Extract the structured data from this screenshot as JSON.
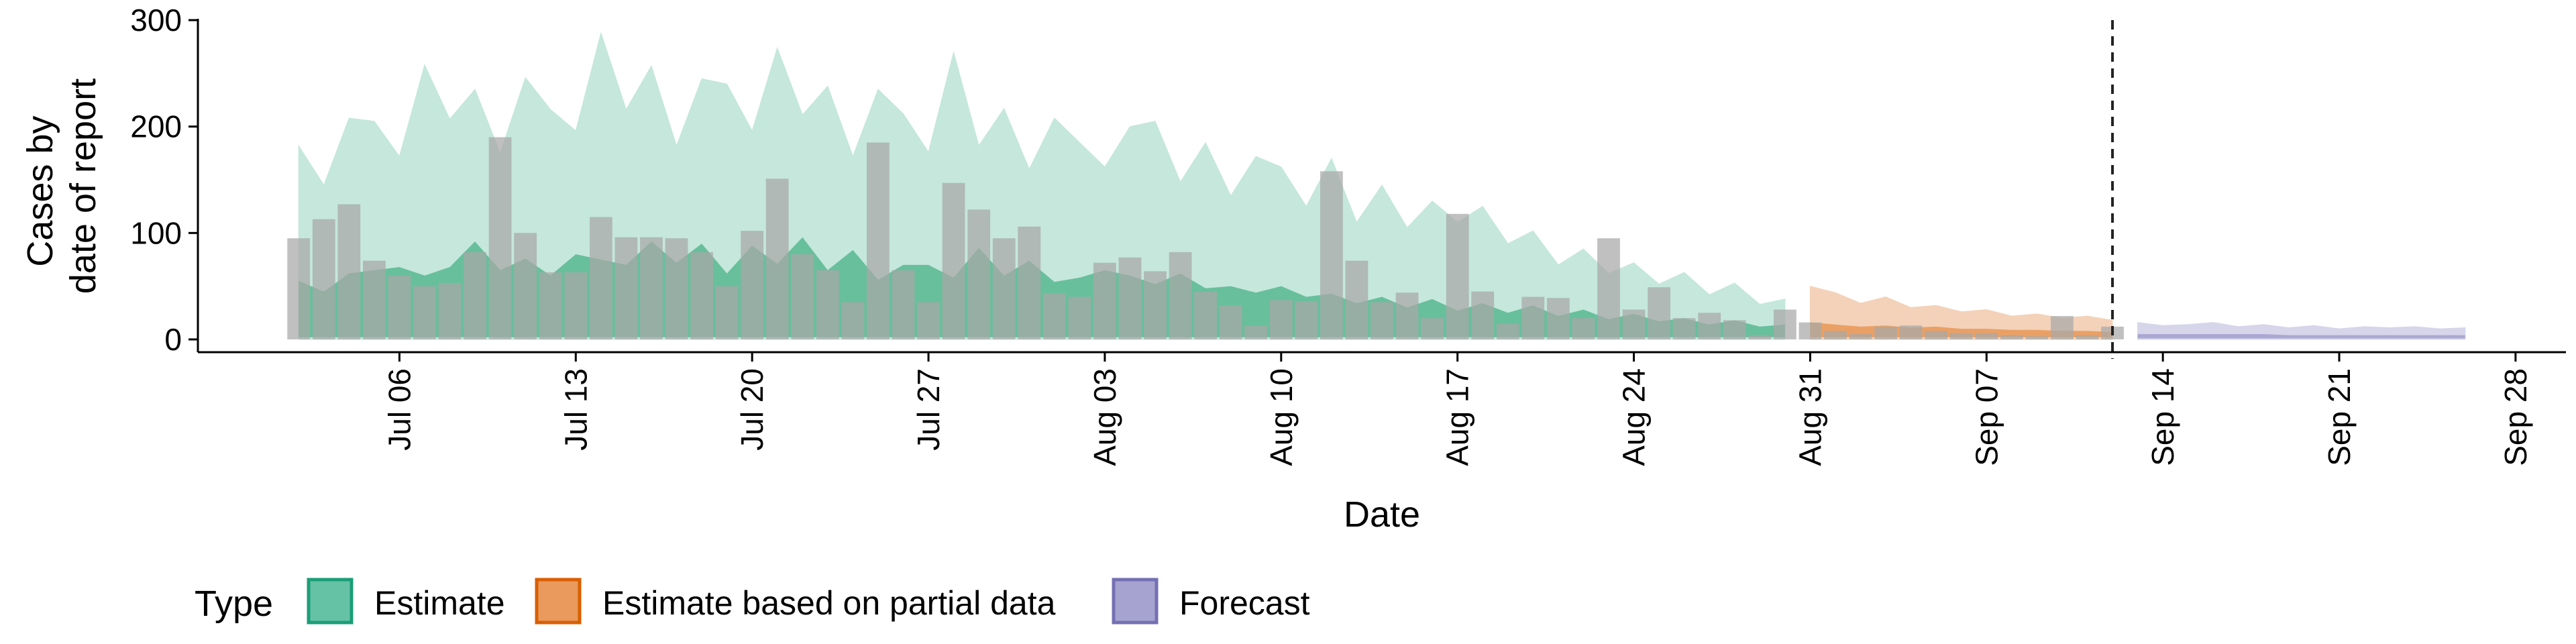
{
  "chart_data": {
    "type": "area",
    "title": "",
    "xlabel": "Date",
    "ylabel": "Cases by date of report",
    "ylabel_lines": [
      "Cases by",
      "date of report"
    ],
    "y_ticks": [
      0,
      100,
      200,
      300
    ],
    "y_tick_labels": [
      "0",
      "100",
      "200",
      "300"
    ],
    "ylim": [
      -12,
      300
    ],
    "xlim": [
      "2020-06-28",
      "2020-09-30"
    ],
    "x_ticks": [
      "2020-07-06",
      "2020-07-13",
      "2020-07-20",
      "2020-07-27",
      "2020-08-03",
      "2020-08-10",
      "2020-08-17",
      "2020-08-24",
      "2020-08-31",
      "2020-09-07",
      "2020-09-14",
      "2020-09-21",
      "2020-09-28"
    ],
    "x_tick_labels": [
      "Jul 06",
      "Jul 13",
      "Jul 20",
      "Jul 27",
      "Aug 03",
      "Aug 10",
      "Aug 17",
      "Aug 24",
      "Aug 31",
      "Sep 07",
      "Sep 14",
      "Sep 21",
      "Sep 28"
    ],
    "grid": false,
    "vline": "2020-09-12",
    "legend": {
      "position": "bottom",
      "title": "Type",
      "entries": [
        {
          "label": "Estimate",
          "fill": "#66c2a5",
          "stroke": "#1b9e77"
        },
        {
          "label": "Estimate based on partial data",
          "fill": "#e99a5c",
          "stroke": "#d95f02"
        },
        {
          "label": "Forecast",
          "fill": "#a6a3d0",
          "stroke": "#7570b3"
        }
      ]
    },
    "colors": {
      "estimate_outer": "#c5e7dc",
      "estimate_inner": "#5dba95",
      "partial_outer": "#f3d2b9",
      "partial_inner": "#e99a5c",
      "forecast_outer": "#d6d5ea",
      "forecast_inner": "#a6a3d0",
      "bars": "#a8a8a8"
    },
    "bars": {
      "x": [
        "2020-07-02",
        "2020-07-03",
        "2020-07-04",
        "2020-07-05",
        "2020-07-06",
        "2020-07-07",
        "2020-07-08",
        "2020-07-09",
        "2020-07-10",
        "2020-07-11",
        "2020-07-12",
        "2020-07-13",
        "2020-07-14",
        "2020-07-15",
        "2020-07-16",
        "2020-07-17",
        "2020-07-18",
        "2020-07-19",
        "2020-07-20",
        "2020-07-21",
        "2020-07-22",
        "2020-07-23",
        "2020-07-24",
        "2020-07-25",
        "2020-07-26",
        "2020-07-27",
        "2020-07-28",
        "2020-07-29",
        "2020-07-30",
        "2020-07-31",
        "2020-08-01",
        "2020-08-02",
        "2020-08-03",
        "2020-08-04",
        "2020-08-05",
        "2020-08-06",
        "2020-08-07",
        "2020-08-08",
        "2020-08-09",
        "2020-08-10",
        "2020-08-11",
        "2020-08-12",
        "2020-08-13",
        "2020-08-14",
        "2020-08-15",
        "2020-08-16",
        "2020-08-17",
        "2020-08-18",
        "2020-08-19",
        "2020-08-20",
        "2020-08-21",
        "2020-08-22",
        "2020-08-23",
        "2020-08-24",
        "2020-08-25",
        "2020-08-26",
        "2020-08-27",
        "2020-08-28",
        "2020-08-29",
        "2020-08-30",
        "2020-08-31",
        "2020-09-01",
        "2020-09-02",
        "2020-09-03",
        "2020-09-04",
        "2020-09-05",
        "2020-09-06",
        "2020-09-07",
        "2020-09-08",
        "2020-09-09",
        "2020-09-10",
        "2020-09-11",
        "2020-09-12"
      ],
      "values": [
        95,
        113,
        127,
        74,
        60,
        50,
        53,
        82,
        190,
        100,
        63,
        63,
        115,
        96,
        96,
        95,
        82,
        50,
        102,
        151,
        80,
        65,
        35,
        185,
        65,
        35,
        147,
        122,
        95,
        106,
        43,
        40,
        72,
        77,
        64,
        82,
        45,
        32,
        13,
        37,
        36,
        158,
        74,
        35,
        44,
        20,
        118,
        45,
        15,
        40,
        39,
        20,
        95,
        28,
        49,
        20,
        25,
        18,
        4,
        28,
        16,
        8,
        5,
        12,
        13,
        8,
        6,
        6,
        4,
        3,
        22,
        4,
        12
      ]
    },
    "series": [
      {
        "name": "Estimate",
        "x": [
          "2020-07-02",
          "2020-07-03",
          "2020-07-04",
          "2020-07-05",
          "2020-07-06",
          "2020-07-07",
          "2020-07-08",
          "2020-07-09",
          "2020-07-10",
          "2020-07-11",
          "2020-07-12",
          "2020-07-13",
          "2020-07-14",
          "2020-07-15",
          "2020-07-16",
          "2020-07-17",
          "2020-07-18",
          "2020-07-19",
          "2020-07-20",
          "2020-07-21",
          "2020-07-22",
          "2020-07-23",
          "2020-07-24",
          "2020-07-25",
          "2020-07-26",
          "2020-07-27",
          "2020-07-28",
          "2020-07-29",
          "2020-07-30",
          "2020-07-31",
          "2020-08-01",
          "2020-08-02",
          "2020-08-03",
          "2020-08-04",
          "2020-08-05",
          "2020-08-06",
          "2020-08-07",
          "2020-08-08",
          "2020-08-09",
          "2020-08-10",
          "2020-08-11",
          "2020-08-12",
          "2020-08-13",
          "2020-08-14",
          "2020-08-15",
          "2020-08-16",
          "2020-08-17",
          "2020-08-18",
          "2020-08-19",
          "2020-08-20",
          "2020-08-21",
          "2020-08-22",
          "2020-08-23",
          "2020-08-24",
          "2020-08-25",
          "2020-08-26",
          "2020-08-27",
          "2020-08-28",
          "2020-08-29",
          "2020-08-30"
        ],
        "outer_upper": [
          182,
          145,
          208,
          205,
          172,
          258,
          207,
          235,
          175,
          246,
          216,
          196,
          288,
          216,
          257,
          182,
          245,
          240,
          196,
          274,
          211,
          238,
          172,
          235,
          212,
          176,
          270,
          182,
          217,
          160,
          208,
          185,
          162,
          200,
          205,
          148,
          185,
          135,
          172,
          162,
          125,
          170,
          110,
          145,
          105,
          130,
          110,
          125,
          90,
          102,
          70,
          85,
          62,
          72,
          52,
          63,
          42,
          53,
          33,
          38
        ],
        "outer_lower": [
          0,
          0,
          0,
          0,
          0,
          0,
          0,
          0,
          0,
          0,
          0,
          0,
          0,
          0,
          0,
          0,
          0,
          0,
          0,
          0,
          0,
          0,
          0,
          0,
          0,
          0,
          0,
          0,
          0,
          0,
          0,
          0,
          0,
          0,
          0,
          0,
          0,
          0,
          0,
          0,
          0,
          0,
          0,
          0,
          0,
          0,
          0,
          0,
          0,
          0,
          0,
          0,
          0,
          0,
          0,
          0,
          0,
          0,
          0,
          0
        ],
        "inner_upper": [
          55,
          45,
          62,
          65,
          68,
          60,
          68,
          92,
          65,
          76,
          60,
          80,
          75,
          70,
          92,
          72,
          90,
          62,
          88,
          71,
          96,
          65,
          84,
          56,
          70,
          70,
          58,
          86,
          60,
          74,
          54,
          58,
          65,
          60,
          52,
          62,
          48,
          50,
          44,
          50,
          40,
          43,
          34,
          40,
          30,
          38,
          27,
          34,
          25,
          32,
          22,
          28,
          19,
          24,
          17,
          20,
          14,
          18,
          12,
          14
        ],
        "inner_lower": [
          2,
          2,
          2,
          2,
          2,
          2,
          2,
          2,
          2,
          2,
          2,
          2,
          2,
          2,
          2,
          2,
          2,
          2,
          2,
          2,
          2,
          2,
          2,
          2,
          2,
          2,
          2,
          2,
          2,
          2,
          2,
          2,
          2,
          2,
          2,
          2,
          2,
          2,
          2,
          2,
          2,
          2,
          2,
          2,
          2,
          2,
          2,
          2,
          2,
          2,
          2,
          2,
          2,
          2,
          2,
          2,
          2,
          2,
          2,
          2
        ]
      },
      {
        "name": "Estimate based on partial data",
        "x": [
          "2020-08-31",
          "2020-09-01",
          "2020-09-02",
          "2020-09-03",
          "2020-09-04",
          "2020-09-05",
          "2020-09-06",
          "2020-09-07",
          "2020-09-08",
          "2020-09-09",
          "2020-09-10",
          "2020-09-11",
          "2020-09-12"
        ],
        "outer_upper": [
          50,
          44,
          34,
          40,
          30,
          32,
          26,
          28,
          22,
          24,
          20,
          22,
          18
        ],
        "outer_lower": [
          0,
          0,
          0,
          0,
          0,
          0,
          0,
          0,
          0,
          0,
          0,
          0,
          0
        ],
        "inner_upper": [
          16,
          14,
          12,
          13,
          11,
          12,
          10,
          10,
          9,
          9,
          8,
          8,
          7
        ],
        "inner_lower": [
          2,
          2,
          2,
          2,
          2,
          2,
          2,
          2,
          2,
          2,
          2,
          2,
          2
        ]
      },
      {
        "name": "Forecast",
        "x": [
          "2020-09-13",
          "2020-09-14",
          "2020-09-15",
          "2020-09-16",
          "2020-09-17",
          "2020-09-18",
          "2020-09-19",
          "2020-09-20",
          "2020-09-21",
          "2020-09-22",
          "2020-09-23",
          "2020-09-24",
          "2020-09-25",
          "2020-09-26"
        ],
        "outer_upper": [
          16,
          13,
          14,
          16,
          12,
          14,
          11,
          13,
          10,
          12,
          11,
          12,
          10,
          11
        ],
        "outer_lower": [
          0,
          0,
          0,
          0,
          0,
          0,
          0,
          0,
          0,
          0,
          0,
          0,
          0,
          0
        ],
        "inner_upper": [
          5,
          5,
          5,
          5,
          5,
          5,
          4,
          4,
          4,
          4,
          4,
          4,
          4,
          4
        ],
        "inner_lower": [
          1,
          1,
          1,
          1,
          1,
          1,
          1,
          1,
          1,
          1,
          1,
          1,
          1,
          1
        ]
      }
    ]
  }
}
